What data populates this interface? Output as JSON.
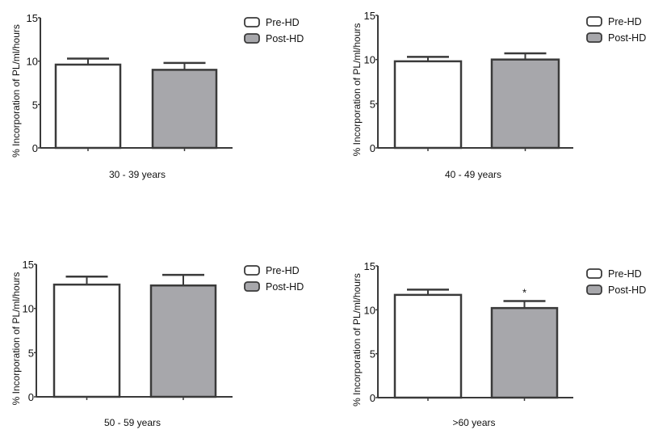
{
  "chart_data": [
    {
      "type": "bar",
      "title": "",
      "xlabel": "30 - 39 years",
      "ylabel": "% Incorporation of PL/ml/hours",
      "ylim": [
        0,
        15
      ],
      "yticks": [
        0,
        5,
        10,
        15
      ],
      "categories": [
        "Pre-HD",
        "Post-HD"
      ],
      "values": [
        9.6,
        9.0
      ],
      "error": [
        0.7,
        0.8
      ],
      "annotations": [
        "",
        ""
      ],
      "legend": [
        "Pre-HD",
        "Post-HD"
      ],
      "legend_position": "top-right",
      "grid": false
    },
    {
      "type": "bar",
      "title": "",
      "xlabel": "40 - 49 years",
      "ylabel": "% Incorporation of PL/ml/hours",
      "ylim": [
        0,
        15
      ],
      "yticks": [
        0,
        5,
        10,
        15
      ],
      "categories": [
        "Pre-HD",
        "Post-HD"
      ],
      "values": [
        9.8,
        10.0
      ],
      "error": [
        0.5,
        0.7
      ],
      "annotations": [
        "",
        ""
      ],
      "legend": [
        "Pre-HD",
        "Post-HD"
      ],
      "legend_position": "top-right",
      "grid": false
    },
    {
      "type": "bar",
      "title": "",
      "xlabel": "50 - 59 years",
      "ylabel": "% Incorporation of PL/ml/hours",
      "ylim": [
        0,
        15
      ],
      "yticks": [
        0,
        5,
        10,
        15
      ],
      "categories": [
        "Pre-HD",
        "Post-HD"
      ],
      "values": [
        12.7,
        12.6
      ],
      "error": [
        0.9,
        1.2
      ],
      "annotations": [
        "",
        ""
      ],
      "legend": [
        "Pre-HD",
        "Post-HD"
      ],
      "legend_position": "top-right",
      "grid": false
    },
    {
      "type": "bar",
      "title": "",
      "xlabel": ">60 years",
      "ylabel": "% Incorporation of PL/ml/hours",
      "ylim": [
        0,
        15
      ],
      "yticks": [
        0,
        5,
        10,
        15
      ],
      "categories": [
        "Pre-HD",
        "Post-HD"
      ],
      "values": [
        11.7,
        10.2
      ],
      "error": [
        0.6,
        0.8
      ],
      "annotations": [
        "",
        "*"
      ],
      "legend": [
        "Pre-HD",
        "Post-HD"
      ],
      "legend_position": "top-right",
      "grid": false
    }
  ],
  "colors": {
    "pre": "#ffffff",
    "post": "#a7a7ab",
    "stroke": "#3a3a3a"
  }
}
